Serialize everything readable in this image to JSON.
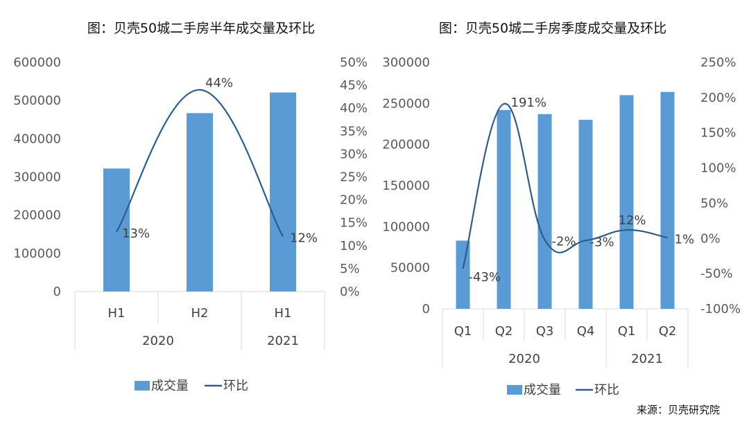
{
  "source": "来源：贝壳研究院",
  "colors": {
    "bar": "#5b9bd5",
    "line": "#2e5c8a",
    "axis": "#d9d9d9",
    "text": "#595959"
  },
  "chart_data": [
    {
      "type": "bar+line",
      "title": "图：贝壳50城二手房半年成交量及环比",
      "categories": [
        "H1",
        "H2",
        "H1"
      ],
      "groups": [
        {
          "label": "2020",
          "span": 2
        },
        {
          "label": "2021",
          "span": 1
        }
      ],
      "series": [
        {
          "name": "成交量",
          "type": "bar",
          "axis": "left",
          "values": [
            322000,
            467000,
            521000
          ]
        },
        {
          "name": "环比",
          "type": "line",
          "axis": "right",
          "values": [
            0.13,
            0.44,
            0.12
          ],
          "labels": [
            "13%",
            "44%",
            "12%"
          ]
        }
      ],
      "y_left": {
        "min": 0,
        "max": 600000,
        "ticks": [
          "0",
          "100000",
          "200000",
          "300000",
          "400000",
          "500000",
          "600000"
        ]
      },
      "y_right": {
        "min": 0,
        "max": 0.5,
        "ticks": [
          "0%",
          "5%",
          "10%",
          "15%",
          "20%",
          "25%",
          "30%",
          "35%",
          "40%",
          "45%",
          "50%"
        ]
      },
      "legend": {
        "position": "bottom",
        "items": [
          "成交量",
          "环比"
        ]
      }
    },
    {
      "type": "bar+line",
      "title": "图：贝壳50城二手房季度成交量及环比",
      "categories": [
        "Q1",
        "Q2",
        "Q3",
        "Q4",
        "Q1",
        "Q2"
      ],
      "groups": [
        {
          "label": "2020",
          "span": 4
        },
        {
          "label": "2021",
          "span": 2
        }
      ],
      "series": [
        {
          "name": "成交量",
          "type": "bar",
          "axis": "left",
          "values": [
            83000,
            242000,
            237000,
            230000,
            260000,
            264000
          ]
        },
        {
          "name": "环比",
          "type": "line",
          "axis": "right",
          "values": [
            -0.43,
            1.91,
            -0.02,
            -0.03,
            0.12,
            0.01
          ],
          "labels": [
            "-43%",
            "191%",
            "-2%",
            "-3%",
            "12%",
            "1%"
          ]
        }
      ],
      "y_left": {
        "min": 0,
        "max": 300000,
        "ticks": [
          "0",
          "50000",
          "100000",
          "150000",
          "200000",
          "250000",
          "300000"
        ]
      },
      "y_right": {
        "min": -1,
        "max": 2.5,
        "ticks": [
          "-100%",
          "-50%",
          "0%",
          "50%",
          "100%",
          "150%",
          "200%",
          "250%"
        ]
      },
      "legend": {
        "position": "bottom",
        "items": [
          "成交量",
          "环比"
        ]
      }
    }
  ]
}
